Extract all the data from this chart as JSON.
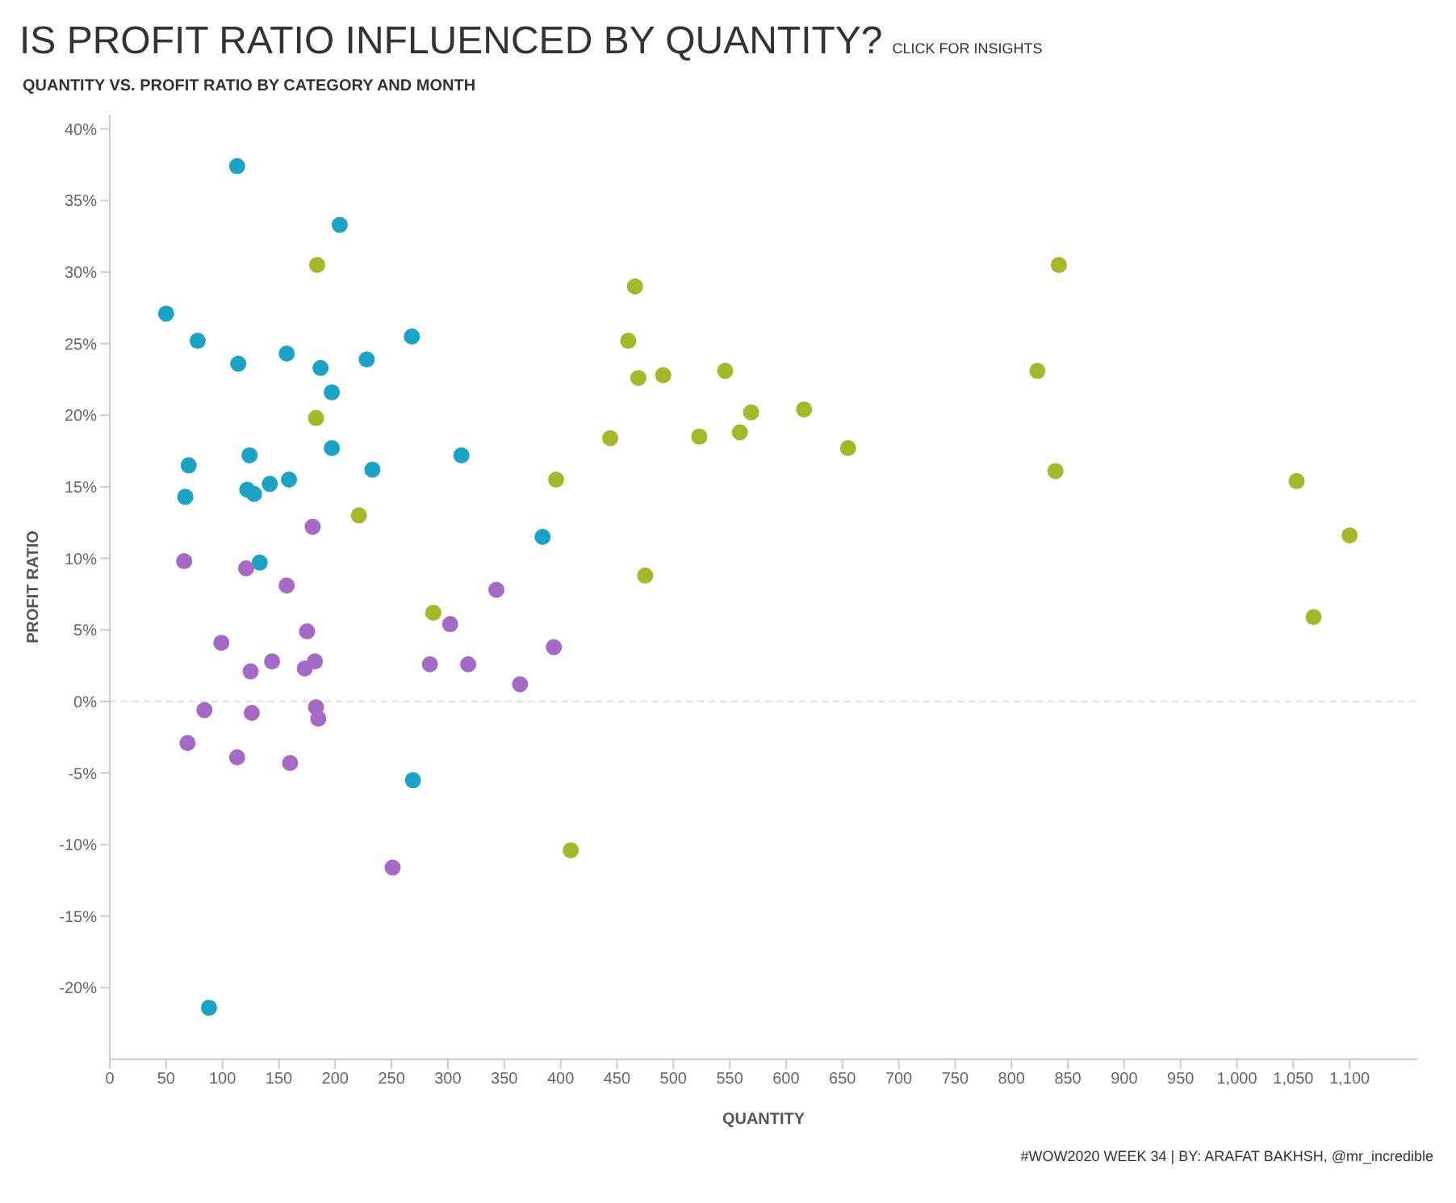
{
  "chart_data": {
    "type": "scatter",
    "title": "IS PROFIT RATIO INFLUENCED BY QUANTITY?",
    "subtitle": "QUANTITY VS. PROFIT RATIO BY CATEGORY AND MONTH",
    "xlabel": "QUANTITY",
    "ylabel": "PROFIT RATIO",
    "annotations": [
      "CLICK FOR INSIGHTS",
      "#WOW2020 WEEK 34 | BY: ARAFAT BAKHSH, @mr_incredible"
    ],
    "marker": "circle",
    "grid": false,
    "legend": false,
    "xlim": [
      0,
      1160
    ],
    "xticks": [
      0,
      50,
      100,
      150,
      200,
      250,
      300,
      350,
      400,
      450,
      500,
      550,
      600,
      650,
      700,
      750,
      800,
      850,
      900,
      950,
      {
        "value": 1000,
        "label": "1,000"
      },
      {
        "value": 1050,
        "label": "1,050"
      },
      {
        "value": 1100,
        "label": "1,100"
      }
    ],
    "ylim": [
      -25,
      41
    ],
    "yticks": [
      {
        "value": -20,
        "label": "-20%"
      },
      {
        "value": -15,
        "label": "-15%"
      },
      {
        "value": -10,
        "label": "-10%"
      },
      {
        "value": -5,
        "label": "-5%"
      },
      {
        "value": 0,
        "label": "0%"
      },
      {
        "value": 5,
        "label": "5%"
      },
      {
        "value": 10,
        "label": "10%"
      },
      {
        "value": 15,
        "label": "15%"
      },
      {
        "value": 20,
        "label": "20%"
      },
      {
        "value": 25,
        "label": "25%"
      },
      {
        "value": 30,
        "label": "30%"
      },
      {
        "value": 35,
        "label": "35%"
      },
      {
        "value": 40,
        "label": "40%"
      }
    ],
    "ref_lines": [
      {
        "axis": "y",
        "value": 0,
        "label": null,
        "color": "#dddddd",
        "line_style": "dashed"
      }
    ],
    "series": [
      {
        "color": "#1ba3c6",
        "x": [
          113,
          204,
          50,
          78,
          114,
          157,
          187,
          228,
          268,
          197,
          197,
          124,
          70,
          233,
          312,
          67,
          122,
          128,
          142,
          159,
          384,
          133,
          269,
          88
        ],
        "values": [
          37.4,
          33.3,
          27.1,
          25.2,
          23.6,
          24.3,
          23.3,
          23.9,
          25.5,
          21.6,
          17.7,
          17.2,
          16.5,
          16.2,
          17.2,
          14.3,
          14.8,
          14.5,
          15.2,
          15.5,
          11.5,
          9.7,
          -5.5,
          -21.4
        ]
      },
      {
        "color": "#a5b82a",
        "x": [
          184,
          183,
          221,
          466,
          460,
          469,
          491,
          546,
          569,
          616,
          444,
          523,
          559,
          655,
          396,
          475,
          287,
          409,
          842,
          823,
          839,
          1053,
          1100,
          1068
        ],
        "values": [
          30.5,
          19.8,
          13.0,
          29.0,
          25.2,
          22.6,
          22.8,
          23.1,
          20.2,
          20.4,
          18.4,
          18.5,
          18.8,
          17.7,
          15.5,
          8.8,
          6.2,
          -10.4,
          30.5,
          23.1,
          16.1,
          15.4,
          11.6,
          5.9
        ]
      },
      {
        "color": "#a56ac6",
        "x": [
          180,
          66,
          121,
          157,
          175,
          99,
          144,
          125,
          173,
          182,
          84,
          126,
          183,
          185,
          69,
          113,
          160,
          251,
          343,
          302,
          284,
          318,
          394,
          364
        ],
        "values": [
          12.2,
          9.8,
          9.3,
          8.1,
          4.9,
          4.1,
          2.8,
          2.1,
          2.3,
          2.8,
          -0.6,
          -0.8,
          -0.4,
          -1.2,
          -2.9,
          -3.9,
          -4.3,
          -11.6,
          7.8,
          5.4,
          2.6,
          2.6,
          3.8,
          1.2
        ]
      }
    ]
  }
}
